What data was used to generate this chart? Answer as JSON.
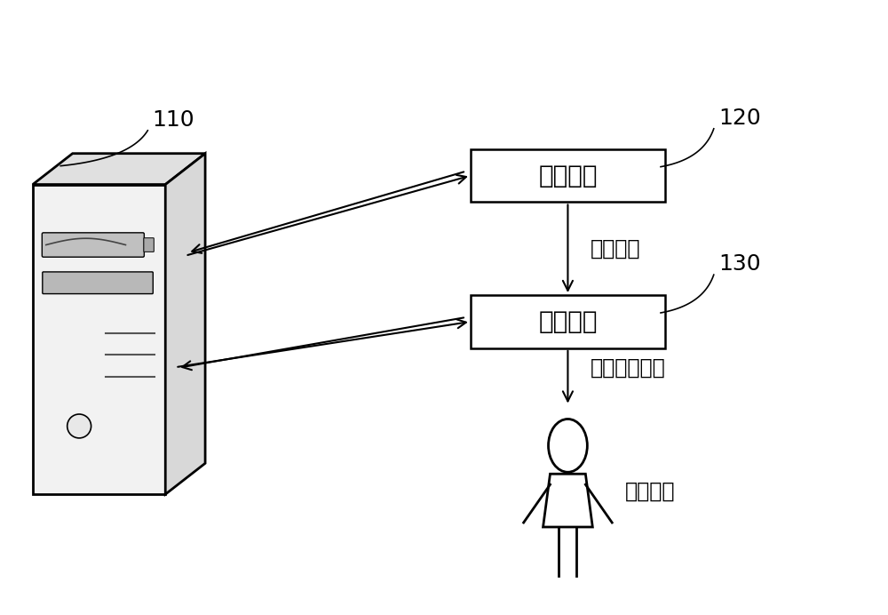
{
  "bg_color": "#ffffff",
  "label_110": "110",
  "label_120": "120",
  "label_130": "130",
  "box1_text": "深度相机",
  "box2_text": "超声探头",
  "arrow1_label": "采集图像",
  "arrow2_label": "采集超声图像",
  "person_label": "目标人体",
  "font_size_box": 20,
  "font_size_label": 17,
  "font_size_number": 18
}
